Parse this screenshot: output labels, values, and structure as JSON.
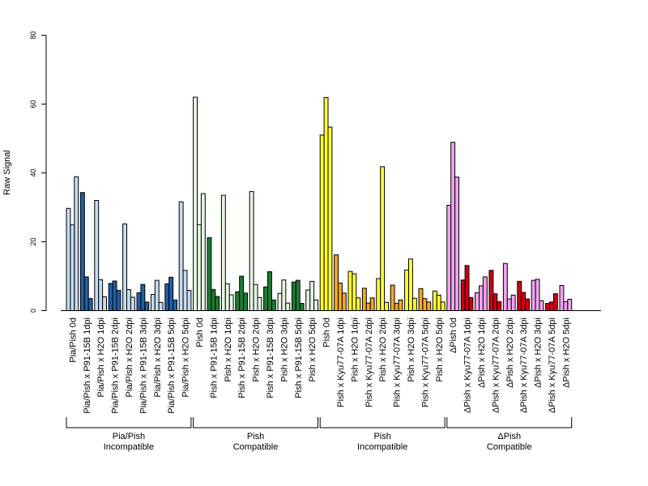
{
  "chart_data": {
    "type": "bar",
    "ylabel": "Raw Signal",
    "ylim": [
      0,
      80
    ],
    "yticks": [
      0,
      20,
      40,
      60,
      80
    ],
    "categories": [
      "Pia/Pish 0d",
      "Pia/Pish x P91-15B 1dpi",
      "Pia/Pish x H2O 1dpi",
      "Pia/Pish x P91-15B 2dpi",
      "Pia/Pish x H2O 2dpi",
      "Pia/Pish x P91-15B 3dpi",
      "Pia/Pish x H2O 3dpi",
      "Pia/Pish x P91-15B 5dpi",
      "Pia/Pish x H2O 5dpi",
      "Pish 0d",
      "Pish x P91-15B 1dpi",
      "Pish x H2O 1dpi",
      "Pish x P91-15B 2dpi",
      "Pish x H2O 2dpi",
      "Pish x P91-15B 3dpi",
      "Pish x H2O 3dpi",
      "Pish x P91-15B 5dpi",
      "Pish x H2O 5dpi",
      "Pish 0d",
      "Pish x Kyu77-07A 1dpi",
      "Pish x H2O 1dpi",
      "Pish x Kyu77-07A 2dpi",
      "Pish x H2O 2dpi",
      "Pish x Kyu77-07A 3dpi",
      "Pish x H2O 3dpi",
      "Pish x Kyu77-07A 5dpi",
      "Pish x H2O 5dpi",
      "ΔPish 0d",
      "ΔPish x Kyu77-07A 1dpi",
      "ΔPish x H2O 1dpi",
      "ΔPish x Kyu77-07A 2dpi",
      "ΔPish x H2O 2dpi",
      "ΔPish x Kyu77-07A 3dpi",
      "ΔPish x H2O 3dpi",
      "ΔPish x Kyu77-07A 5dpi",
      "ΔPish x H2O 5dpi"
    ],
    "bar_colors": [
      "#c6dbef",
      "#1f5fa8",
      "#c6dbef",
      "#1f5fa8",
      "#c6dbef",
      "#1f5fa8",
      "#c6dbef",
      "#1f5fa8",
      "#c6dbef",
      "#e5f5e0",
      "#1e7b34",
      "#e5f5e0",
      "#1e7b34",
      "#e5f5e0",
      "#1e7b34",
      "#e5f5e0",
      "#1e7b34",
      "#e5f5e0",
      "#ffff33",
      "#f5a623",
      "#ffff33",
      "#f5a623",
      "#ffff33",
      "#f5a623",
      "#ffff33",
      "#f5a623",
      "#ffff33",
      "#f0a3f0",
      "#cc0018",
      "#f0a3f0",
      "#cc0018",
      "#f0a3f0",
      "#cc0018",
      "#f0a3f0",
      "#cc0018",
      "#f0a3f0"
    ],
    "replicates": [
      [
        29.7,
        24.9,
        38.9
      ],
      [
        34.3,
        9.8,
        3.5
      ],
      [
        32.0,
        9.0,
        4.0
      ],
      [
        7.9,
        8.6,
        5.9
      ],
      [
        25.2,
        6.1,
        3.9
      ],
      [
        5.2,
        7.6,
        2.5
      ],
      [
        4.7,
        8.8,
        2.4
      ],
      [
        7.8,
        9.7,
        3.1
      ],
      [
        31.6,
        11.7,
        5.9
      ],
      [
        62.0,
        25.0,
        34.0
      ],
      [
        21.2,
        6.1,
        4.1
      ],
      [
        33.5,
        7.8,
        4.6
      ],
      [
        5.5,
        10.0,
        5.1
      ],
      [
        34.6,
        7.6,
        3.8
      ],
      [
        6.9,
        11.3,
        3.1
      ],
      [
        5.0,
        8.9,
        2.2
      ],
      [
        8.3,
        8.8,
        2.1
      ],
      [
        6.0,
        8.5,
        3.1
      ],
      [
        51.0,
        61.9,
        53.3
      ],
      [
        16.2,
        8.0,
        5.1
      ],
      [
        11.4,
        10.7,
        3.7
      ],
      [
        6.5,
        2.2,
        3.7
      ],
      [
        9.3,
        41.8,
        2.4
      ],
      [
        7.4,
        2.1,
        3.1
      ],
      [
        11.8,
        15.0,
        3.6
      ],
      [
        6.4,
        3.5,
        2.5
      ],
      [
        5.7,
        4.5,
        2.5
      ],
      [
        30.6,
        48.9,
        38.8
      ],
      [
        8.9,
        13.1,
        3.8
      ],
      [
        5.2,
        7.2,
        9.8
      ],
      [
        11.7,
        4.9,
        2.6
      ],
      [
        13.7,
        3.4,
        4.5
      ],
      [
        8.5,
        5.3,
        3.4
      ],
      [
        8.8,
        9.1,
        2.9
      ],
      [
        2.1,
        2.5,
        4.9
      ],
      [
        7.3,
        2.6,
        3.3
      ]
    ],
    "groups": [
      {
        "line1": "Pia/Pish",
        "line2": "Incompatible",
        "start": 0,
        "end": 8
      },
      {
        "line1": "Pish",
        "line2": "Compatible",
        "start": 9,
        "end": 17
      },
      {
        "line1": "Pish",
        "line2": "Incompatible",
        "start": 18,
        "end": 26
      },
      {
        "line1": "ΔPish",
        "line2": "Compatible",
        "start": 27,
        "end": 35
      }
    ],
    "legend": "none",
    "grid": false
  }
}
